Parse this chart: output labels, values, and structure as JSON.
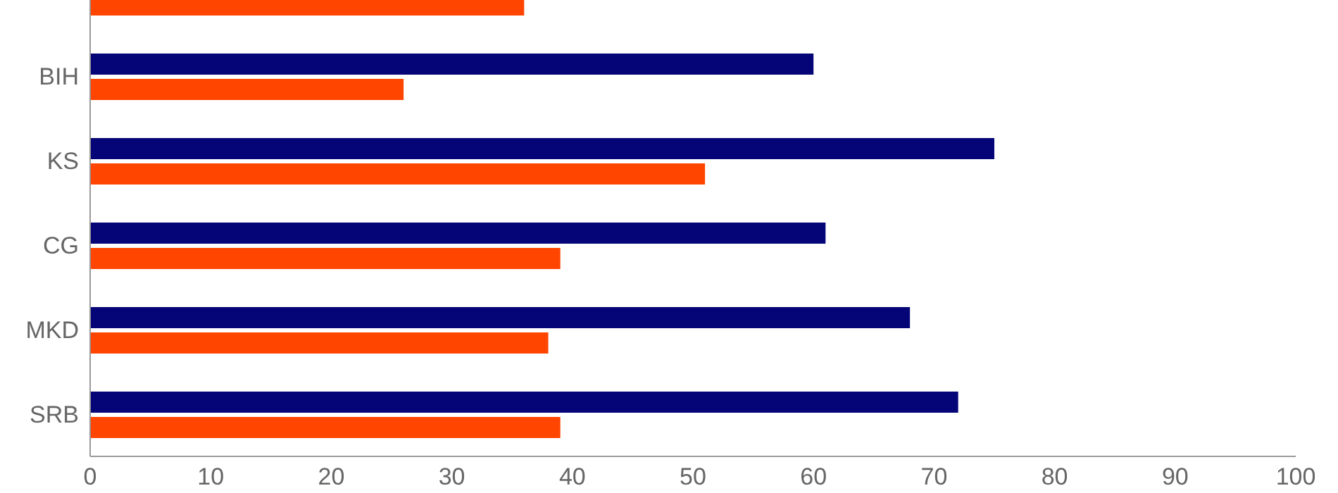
{
  "chart_data": {
    "type": "bar",
    "orientation": "horizontal",
    "categories": [
      null,
      "BIH",
      "KS",
      "CG",
      "MKD",
      "SRB"
    ],
    "series": [
      {
        "color": "#050577",
        "values": [
          null,
          60,
          75,
          61,
          68,
          72
        ]
      },
      {
        "color": "#ff4500",
        "values": [
          36,
          26,
          51,
          39,
          38,
          39
        ]
      }
    ],
    "xlim": [
      0,
      100
    ],
    "xticks": [
      0,
      10,
      20,
      30,
      40,
      50,
      60,
      70,
      80,
      90,
      100
    ],
    "grid": false,
    "legend": false
  }
}
